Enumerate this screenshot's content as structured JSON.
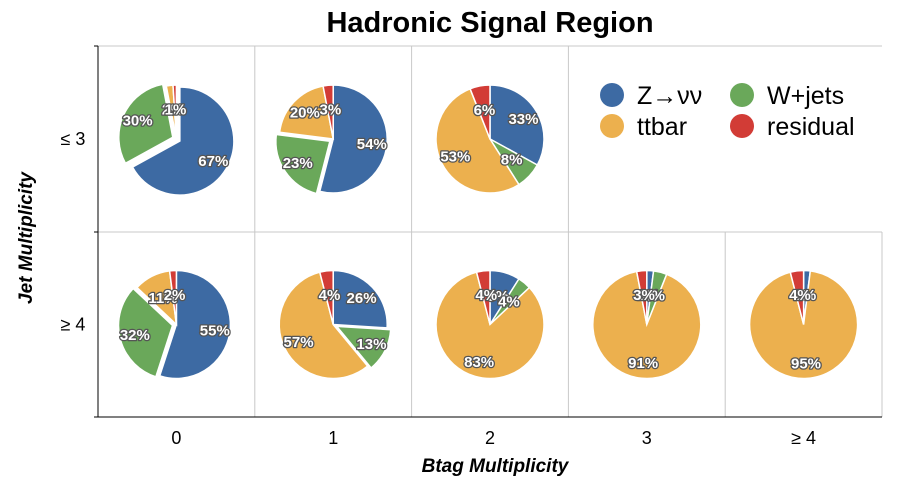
{
  "chart_data": {
    "type": "pie",
    "title": "Hadronic Signal Region",
    "xlabel": "Btag Multiplicity",
    "ylabel": "Jet Multiplicity",
    "x_categories": [
      "0",
      "1",
      "2",
      "3",
      "≥ 4"
    ],
    "y_categories": [
      "≤ 3",
      "≥ 4"
    ],
    "legend": [
      {
        "name": "Z→νν",
        "color": "#3d6aa3"
      },
      {
        "name": "W+jets",
        "color": "#6aa85a"
      },
      {
        "name": "ttbar",
        "color": "#ecb04e"
      },
      {
        "name": "residual",
        "color": "#d23c36"
      }
    ],
    "legend_placement": "top-right",
    "grid": true,
    "pies": [
      {
        "row": 0,
        "col": 0,
        "slices": [
          {
            "series": "Z→νν",
            "value": 67,
            "label": "67%"
          },
          {
            "series": "W+jets",
            "value": 30,
            "label": "30%"
          },
          {
            "series": "ttbar",
            "value": 2,
            "label": "2%"
          },
          {
            "series": "residual",
            "value": 1,
            "label": "1%"
          }
        ]
      },
      {
        "row": 0,
        "col": 1,
        "slices": [
          {
            "series": "Z→νν",
            "value": 54,
            "label": "54%"
          },
          {
            "series": "W+jets",
            "value": 23,
            "label": "23%"
          },
          {
            "series": "ttbar",
            "value": 20,
            "label": "20%"
          },
          {
            "series": "residual",
            "value": 3,
            "label": "3%"
          }
        ]
      },
      {
        "row": 0,
        "col": 2,
        "slices": [
          {
            "series": "Z→νν",
            "value": 33,
            "label": "33%"
          },
          {
            "series": "W+jets",
            "value": 8,
            "label": "8%"
          },
          {
            "series": "ttbar",
            "value": 53,
            "label": "53%"
          },
          {
            "series": "residual",
            "value": 6,
            "label": "6%"
          }
        ]
      },
      {
        "row": 1,
        "col": 0,
        "slices": [
          {
            "series": "Z→νν",
            "value": 55,
            "label": "55%"
          },
          {
            "series": "W+jets",
            "value": 32,
            "label": "32%"
          },
          {
            "series": "ttbar",
            "value": 11,
            "label": "11%"
          },
          {
            "series": "residual",
            "value": 2,
            "label": "2%"
          }
        ]
      },
      {
        "row": 1,
        "col": 1,
        "slices": [
          {
            "series": "Z→νν",
            "value": 26,
            "label": "26%"
          },
          {
            "series": "W+jets",
            "value": 13,
            "label": "13%"
          },
          {
            "series": "ttbar",
            "value": 57,
            "label": "57%"
          },
          {
            "series": "residual",
            "value": 4,
            "label": "4%"
          }
        ]
      },
      {
        "row": 1,
        "col": 2,
        "slices": [
          {
            "series": "Z→νν",
            "value": 9,
            "label": "9%"
          },
          {
            "series": "W+jets",
            "value": 4,
            "label": "4%"
          },
          {
            "series": "ttbar",
            "value": 83,
            "label": "83%"
          },
          {
            "series": "residual",
            "value": 4,
            "label": "4%"
          }
        ]
      },
      {
        "row": 1,
        "col": 3,
        "slices": [
          {
            "series": "Z→νν",
            "value": 2,
            "label": "2%"
          },
          {
            "series": "W+jets",
            "value": 4,
            "label": "4%"
          },
          {
            "series": "ttbar",
            "value": 91,
            "label": "91%"
          },
          {
            "series": "residual",
            "value": 3,
            "label": "3%"
          }
        ]
      },
      {
        "row": 1,
        "col": 4,
        "slices": [
          {
            "series": "Z→νν",
            "value": 2,
            "label": "2%"
          },
          {
            "series": "W+jets",
            "value": 0,
            "label": ""
          },
          {
            "series": "ttbar",
            "value": 95,
            "label": "95%"
          },
          {
            "series": "residual",
            "value": 4,
            "label": "4%"
          }
        ]
      }
    ]
  }
}
